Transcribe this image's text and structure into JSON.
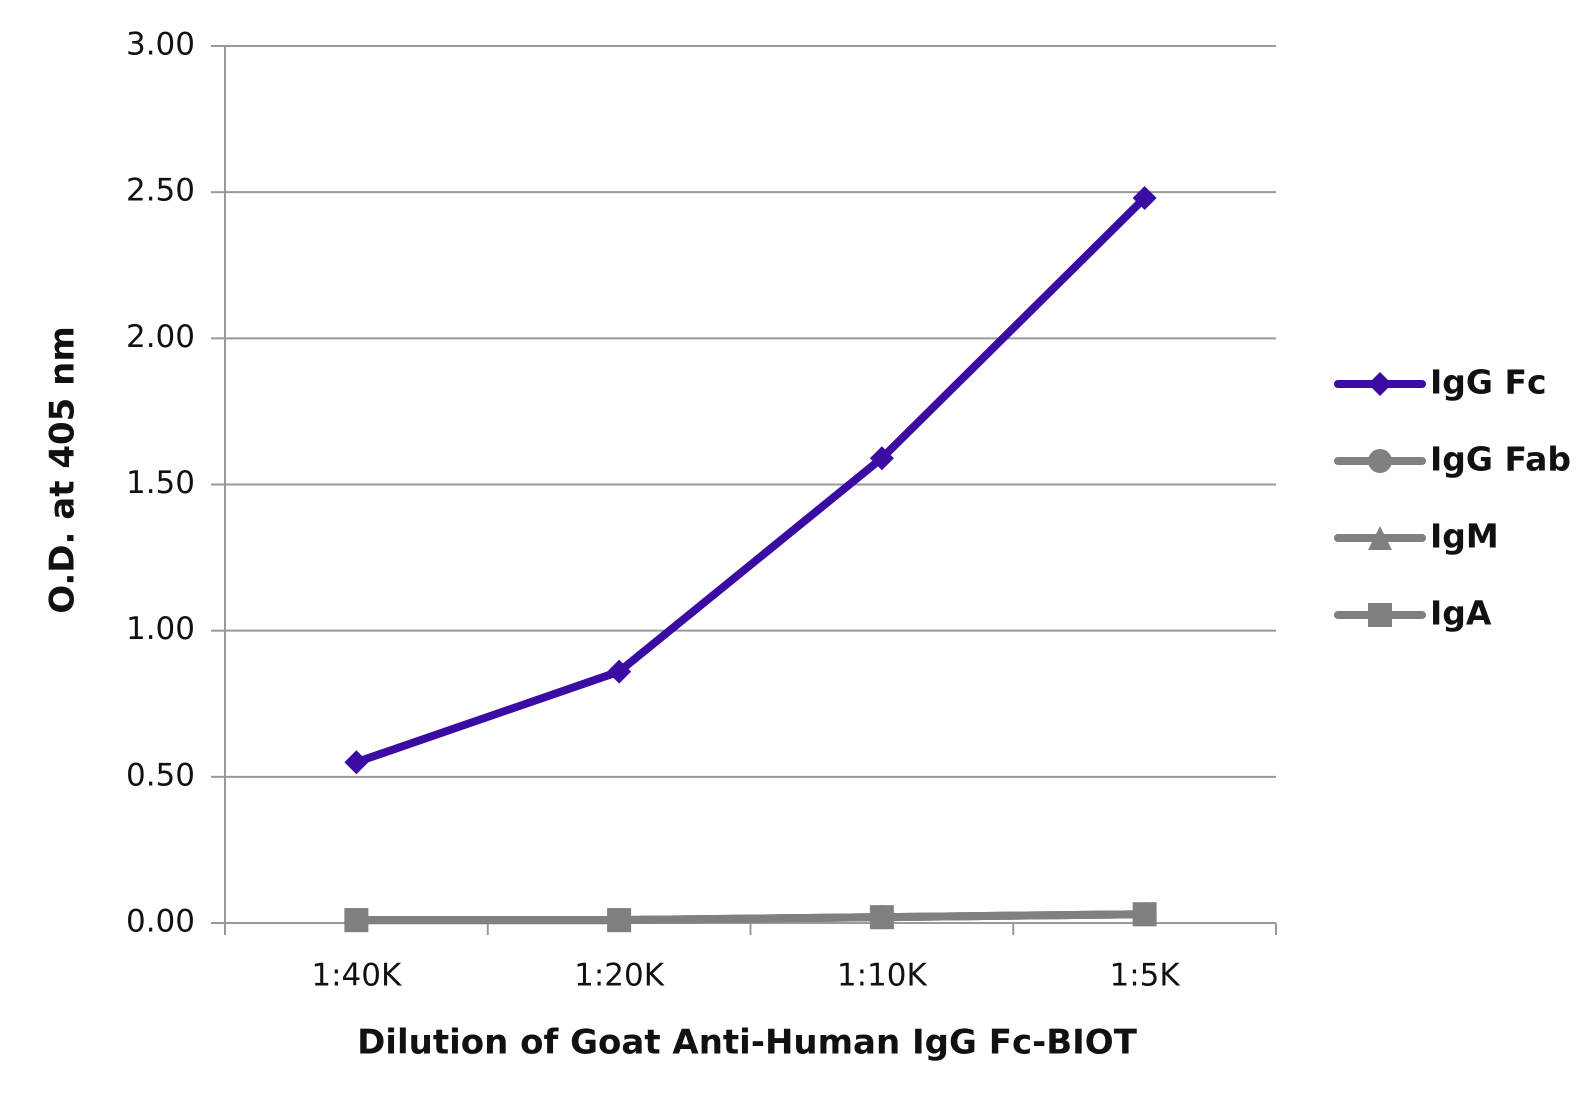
{
  "chart_data": {
    "type": "line",
    "x_label": "Dilution of Goat Anti-Human IgG Fc-BIOT",
    "y_label": "O.D. at 405 nm",
    "categories": [
      "1:40K",
      "1:20K",
      "1:10K",
      "1:5K"
    ],
    "series": [
      {
        "name": "IgG Fc",
        "color": "#3a0ca3",
        "marker": "diamond",
        "values": [
          0.55,
          0.86,
          1.59,
          2.48
        ]
      },
      {
        "name": "IgG Fab",
        "color": "#808080",
        "marker": "circle",
        "values": [
          0.01,
          0.01,
          0.02,
          0.03
        ]
      },
      {
        "name": "IgM",
        "color": "#808080",
        "marker": "triangle",
        "values": [
          0.01,
          0.01,
          0.02,
          0.03
        ]
      },
      {
        "name": "IgA",
        "color": "#808080",
        "marker": "square",
        "values": [
          0.01,
          0.01,
          0.02,
          0.03
        ]
      }
    ],
    "ylim": [
      0,
      3
    ],
    "yticks": [
      {
        "value": 0,
        "label": "0.00"
      },
      {
        "value": 0.5,
        "label": "0.50"
      },
      {
        "value": 1,
        "label": "1.00"
      },
      {
        "value": 1.5,
        "label": "1.50"
      },
      {
        "value": 2,
        "label": "2.00"
      },
      {
        "value": 2.5,
        "label": "2.50"
      },
      {
        "value": 3,
        "label": "3.00"
      }
    ],
    "grid": true,
    "legend_position": "right"
  }
}
